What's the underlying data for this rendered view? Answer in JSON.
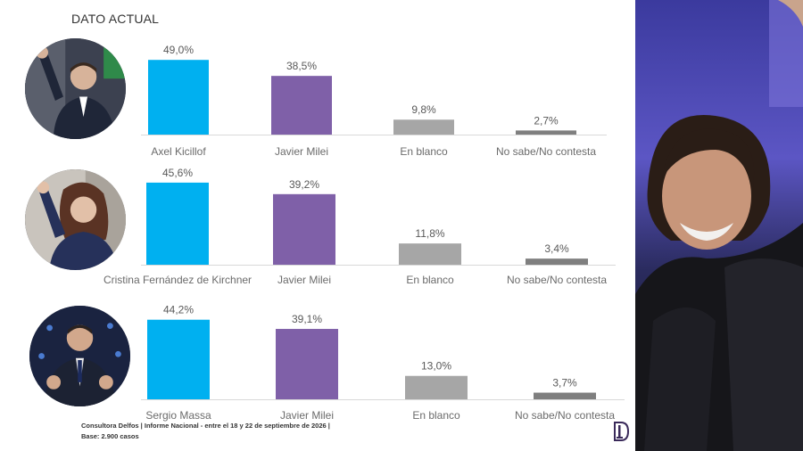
{
  "header": {
    "title": "DATO ACTUAL"
  },
  "colors": {
    "candidate": "#00b0f0",
    "milei": "#7f60a8",
    "blank": "#a6a6a6",
    "nsnc": "#7f7f7f",
    "axis": "#d9d9d9"
  },
  "chart_data": [
    {
      "type": "bar",
      "categories": [
        "Axel Kicillof",
        "Javier Milei",
        "En blanco",
        "No sabe/No contesta"
      ],
      "values": [
        49.0,
        38.5,
        9.8,
        2.7
      ],
      "labels": [
        "49,0%",
        "38,5%",
        "9,8%",
        "2,7%"
      ],
      "ylim": [
        0,
        50
      ],
      "grid": false,
      "legend": "none"
    },
    {
      "type": "bar",
      "categories": [
        "Cristina Fernández de Kirchner",
        "Javier Milei",
        "En blanco",
        "No sabe/No contesta"
      ],
      "values": [
        45.6,
        39.2,
        11.8,
        3.4
      ],
      "labels": [
        "45,6%",
        "39,2%",
        "11,8%",
        "3,4%"
      ],
      "ylim": [
        0,
        50
      ],
      "grid": false,
      "legend": "none"
    },
    {
      "type": "bar",
      "categories": [
        "Sergio Massa",
        "Javier Milei",
        "En blanco",
        "No sabe/No contesta"
      ],
      "values": [
        44.2,
        39.1,
        13.0,
        3.7
      ],
      "labels": [
        "44,2%",
        "39,1%",
        "13,0%",
        "3,7%"
      ],
      "ylim": [
        0,
        50
      ],
      "grid": false,
      "legend": "none"
    }
  ],
  "footer": {
    "line1": "Consultora Delfos | Informe Nacional - entre el 18 y 22 de septiembre de 2026 |",
    "line2": "Base: 2.900 casos"
  },
  "icons": {
    "avatar1": "person-waving-photo",
    "avatar2": "person-waving-photo",
    "avatar3": "person-gesturing-photo",
    "logo": "delfos-logo",
    "side_photo": "person-smiling-photo"
  }
}
